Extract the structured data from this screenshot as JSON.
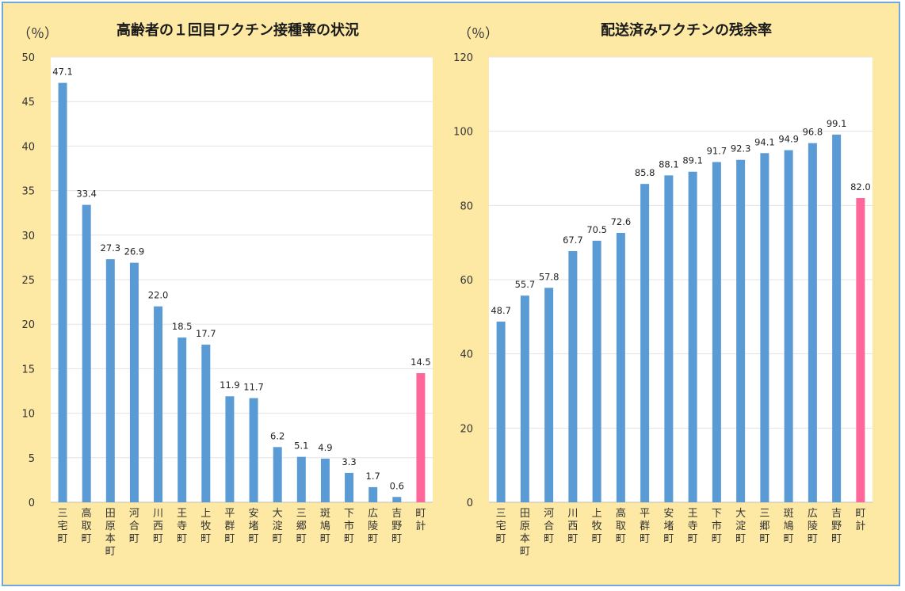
{
  "chart_data": [
    {
      "type": "bar",
      "title": "高齢者の１回目ワクチン接種率の状況",
      "unit": "（％）",
      "ylim": [
        0,
        50
      ],
      "yticks": [
        0,
        5,
        10,
        15,
        20,
        25,
        30,
        35,
        40,
        45,
        50
      ],
      "grid": true,
      "categories": [
        "三宅町",
        "高取町",
        "田原本町",
        "河合町",
        "川西町",
        "王寺町",
        "上牧町",
        "平群町",
        "安堵町",
        "大淀町",
        "三郷町",
        "斑鳩町",
        "下市町",
        "広陵町",
        "吉野町",
        "町計"
      ],
      "values": [
        47.1,
        33.4,
        27.3,
        26.9,
        22.0,
        18.5,
        17.7,
        11.9,
        11.7,
        6.2,
        5.1,
        4.9,
        3.3,
        1.7,
        0.6,
        14.5
      ],
      "value_labels": [
        "47.1",
        "33.4",
        "27.3",
        "26.9",
        "22.0",
        "18.5",
        "17.7",
        "11.9",
        "11.7",
        "6.2",
        "5.1",
        "4.9",
        "3.3",
        "1.7",
        "0.6",
        "14.5"
      ],
      "bar_color": "#5b9bd5",
      "total_color": "#ff6699"
    },
    {
      "type": "bar",
      "title": "配送済みワクチンの残余率",
      "unit": "（％）",
      "ylim": [
        0,
        120
      ],
      "yticks": [
        0,
        20,
        40,
        60,
        80,
        100,
        120
      ],
      "grid": true,
      "categories": [
        "三宅町",
        "田原本町",
        "河合町",
        "川西町",
        "上牧町",
        "高取町",
        "平群町",
        "安堵町",
        "王寺町",
        "下市町",
        "大淀町",
        "三郷町",
        "斑鳩町",
        "広陵町",
        "吉野町",
        "町計"
      ],
      "values": [
        48.7,
        55.7,
        57.8,
        67.7,
        70.5,
        72.6,
        85.8,
        88.1,
        89.1,
        91.7,
        92.3,
        94.1,
        94.9,
        96.8,
        99.1,
        82.0
      ],
      "value_labels": [
        "48.7",
        "55.7",
        "57.8",
        "67.7",
        "70.5",
        "72.6",
        "85.8",
        "88.1",
        "89.1",
        "91.7",
        "92.3",
        "94.1",
        "94.9",
        "96.8",
        "99.1",
        "82.0"
      ],
      "bar_color": "#5b9bd5",
      "total_color": "#ff6699"
    }
  ]
}
